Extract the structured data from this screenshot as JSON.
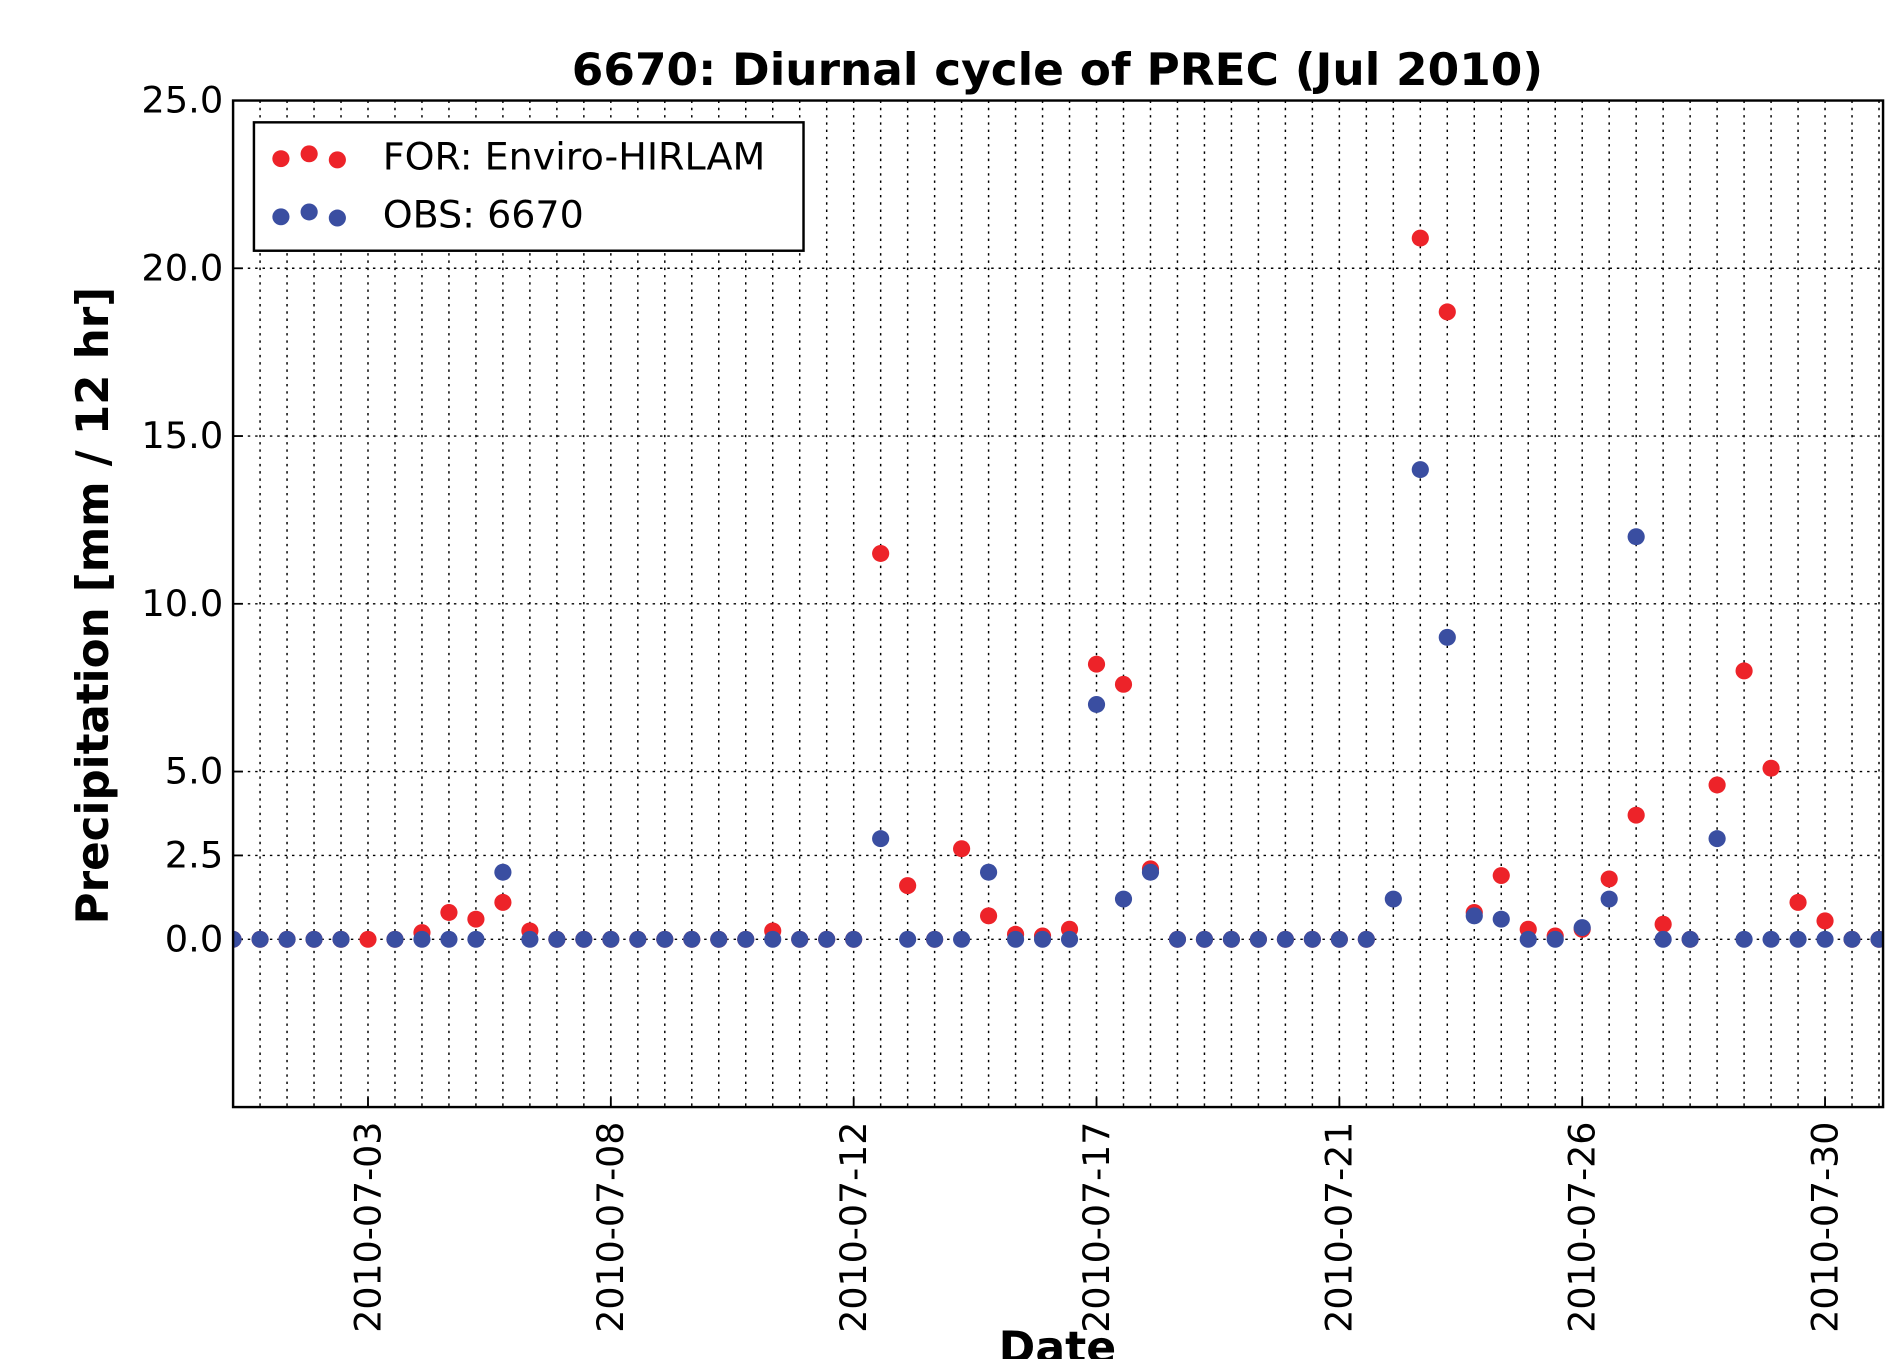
{
  "chart_data": {
    "type": "scatter",
    "title": "6670: Diurnal cycle of PREC (Jul 2010)",
    "xlabel": "Date",
    "ylabel": "Precipitation [mm / 12 hr]",
    "categories": [
      null,
      null,
      null,
      null,
      null,
      "2010-07-03",
      null,
      null,
      null,
      null,
      null,
      null,
      null,
      null,
      "2010-07-08",
      null,
      null,
      null,
      null,
      null,
      null,
      null,
      null,
      "2010-07-12",
      null,
      null,
      null,
      null,
      null,
      null,
      null,
      null,
      "2010-07-17",
      null,
      null,
      null,
      null,
      null,
      null,
      null,
      null,
      "2010-07-21",
      null,
      null,
      null,
      null,
      null,
      null,
      null,
      null,
      "2010-07-26",
      null,
      null,
      null,
      null,
      null,
      null,
      null,
      null,
      "2010-07-30",
      null,
      null
    ],
    "xlim": [
      0,
      61.15
    ],
    "series": [
      {
        "name": "FOR: Enviro-HIRLAM",
        "color": "#ed2329",
        "values": [
          0,
          0,
          0,
          0,
          0,
          0,
          0,
          0.2,
          0.8,
          0.6,
          1.1,
          0.25,
          0,
          0,
          0,
          0,
          0,
          0,
          0,
          0,
          0.25,
          0,
          0,
          0,
          11.5,
          1.6,
          0,
          2.7,
          0.7,
          0.15,
          0.1,
          0.3,
          8.2,
          7.6,
          2.1,
          0,
          0,
          0,
          0,
          0,
          0,
          0,
          0,
          null,
          20.9,
          18.7,
          0.8,
          1.9,
          0.3,
          0.1,
          0.3,
          1.8,
          3.7,
          0.45,
          0,
          4.6,
          8.0,
          5.1,
          1.1,
          0.55,
          0,
          0
        ]
      },
      {
        "name": "OBS: 6670",
        "color": "#3a4ea1",
        "values": [
          0,
          0,
          0,
          0,
          0,
          null,
          0,
          0,
          0,
          0,
          2.0,
          0,
          0,
          0,
          0,
          0,
          0,
          0,
          0,
          0,
          0,
          0,
          0,
          0,
          3.0,
          0,
          0,
          0,
          2.0,
          0,
          0,
          0,
          7.0,
          1.2,
          2.0,
          0,
          0,
          0,
          0,
          0,
          0,
          0,
          0,
          1.2,
          14.0,
          9.0,
          0.7,
          0.6,
          0,
          0,
          0.35,
          1.2,
          12.0,
          0,
          0,
          3.0,
          0,
          0,
          0,
          0,
          0,
          0
        ]
      }
    ],
    "ylim": [
      -5,
      25
    ],
    "yticks": [
      {
        "value": 0,
        "label": "0.0"
      },
      {
        "value": 2.5,
        "label": "2.5"
      },
      {
        "value": 5,
        "label": "5.0"
      },
      {
        "value": 10,
        "label": "10.0"
      },
      {
        "value": 15,
        "label": "15.0"
      },
      {
        "value": 20,
        "label": "20.0"
      },
      {
        "value": 25,
        "label": "25.0"
      }
    ],
    "grid": true,
    "legend": "upper left"
  }
}
